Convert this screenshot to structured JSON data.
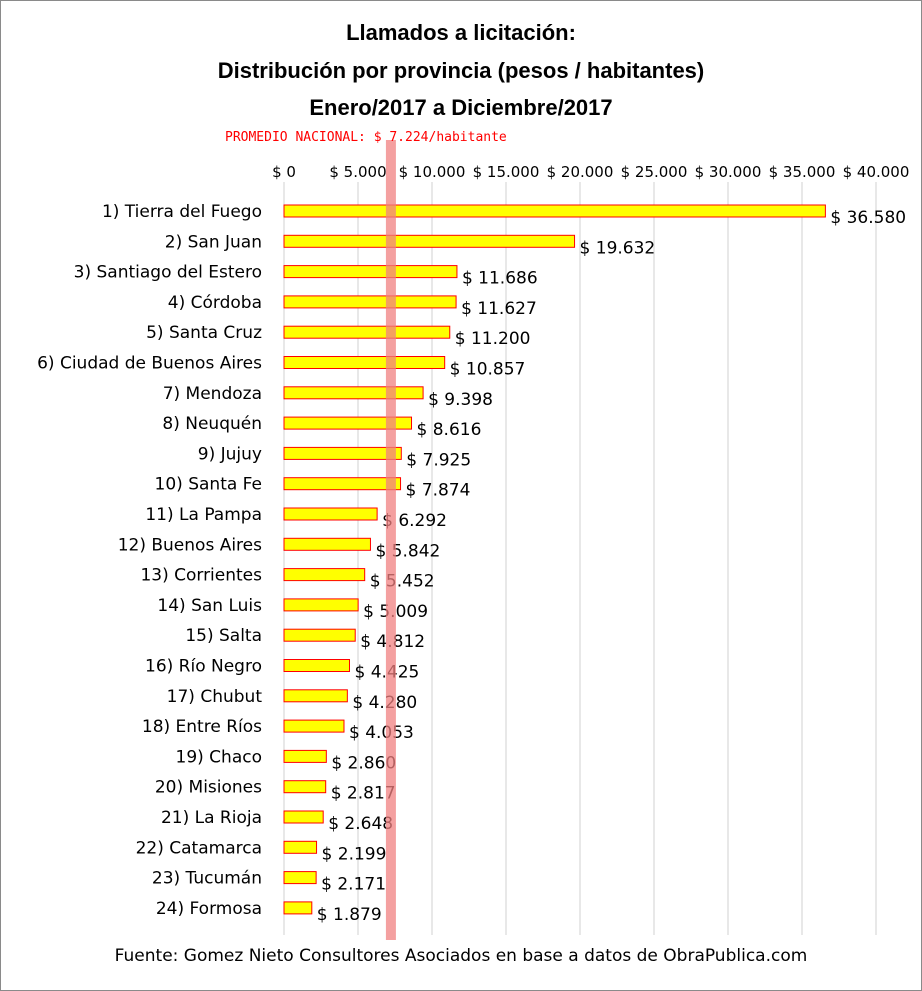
{
  "chart_data": {
    "type": "bar",
    "orientation": "horizontal",
    "title": [
      "Llamados a licitación:",
      "Distribución por provincia (pesos / habitantes)",
      "Enero/2017 a Diciembre/2017"
    ],
    "reference_line": {
      "label": "PROMEDIO NACIONAL: $ 7.224/habitante",
      "value": 7224,
      "color": "#f08080"
    },
    "xlim": [
      0,
      40000
    ],
    "tick_values": [
      0,
      5000,
      10000,
      15000,
      20000,
      25000,
      30000,
      35000,
      40000
    ],
    "tick_labels": [
      "$ 0",
      "$ 5.000",
      "$ 10.000",
      "$ 15.000",
      "$ 20.000",
      "$ 25.000",
      "$ 30.000",
      "$ 35.000",
      "$ 40.000"
    ],
    "categories": [
      "1) Tierra del Fuego",
      "2) San Juan",
      "3) Santiago del Estero",
      "4) Córdoba",
      "5) Santa Cruz",
      "6) Ciudad de Buenos Aires",
      "7) Mendoza",
      "8) Neuquén",
      "9) Jujuy",
      "10) Santa Fe",
      "11) La Pampa",
      "12) Buenos Aires",
      "13) Corrientes",
      "14) San Luis",
      "15) Salta",
      "16) Río Negro",
      "17) Chubut",
      "18) Entre Ríos",
      "19) Chaco",
      "20) Misiones",
      "21) La Rioja",
      "22) Catamarca",
      "23) Tucumán",
      "24) Formosa"
    ],
    "values": [
      36580,
      19632,
      11686,
      11627,
      11200,
      10857,
      9398,
      8616,
      7925,
      7874,
      6292,
      5842,
      5452,
      5009,
      4812,
      4425,
      4280,
      4053,
      2860,
      2817,
      2648,
      2199,
      2171,
      1879
    ],
    "value_labels": [
      "$ 36.580",
      "$ 19.632",
      "$ 11.686",
      "$ 11.627",
      "$ 11.200",
      "$ 10.857",
      "$ 9.398",
      "$ 8.616",
      "$ 7.925",
      "$ 7.874",
      "$ 6.292",
      "$ 5.842",
      "$ 5.452",
      "$ 5.009",
      "$ 4.812",
      "$ 4.425",
      "$ 4.280",
      "$ 4.053",
      "$ 2.860",
      "$ 2.817",
      "$ 2.648",
      "$ 2.199",
      "$ 2.171",
      "$ 1.879"
    ],
    "bar_fill": "#ffff00",
    "bar_stroke": "#ff0000",
    "grid": true
  },
  "source": "Fuente: Gomez Nieto Consultores Asociados en base a datos de ObraPublica.com"
}
